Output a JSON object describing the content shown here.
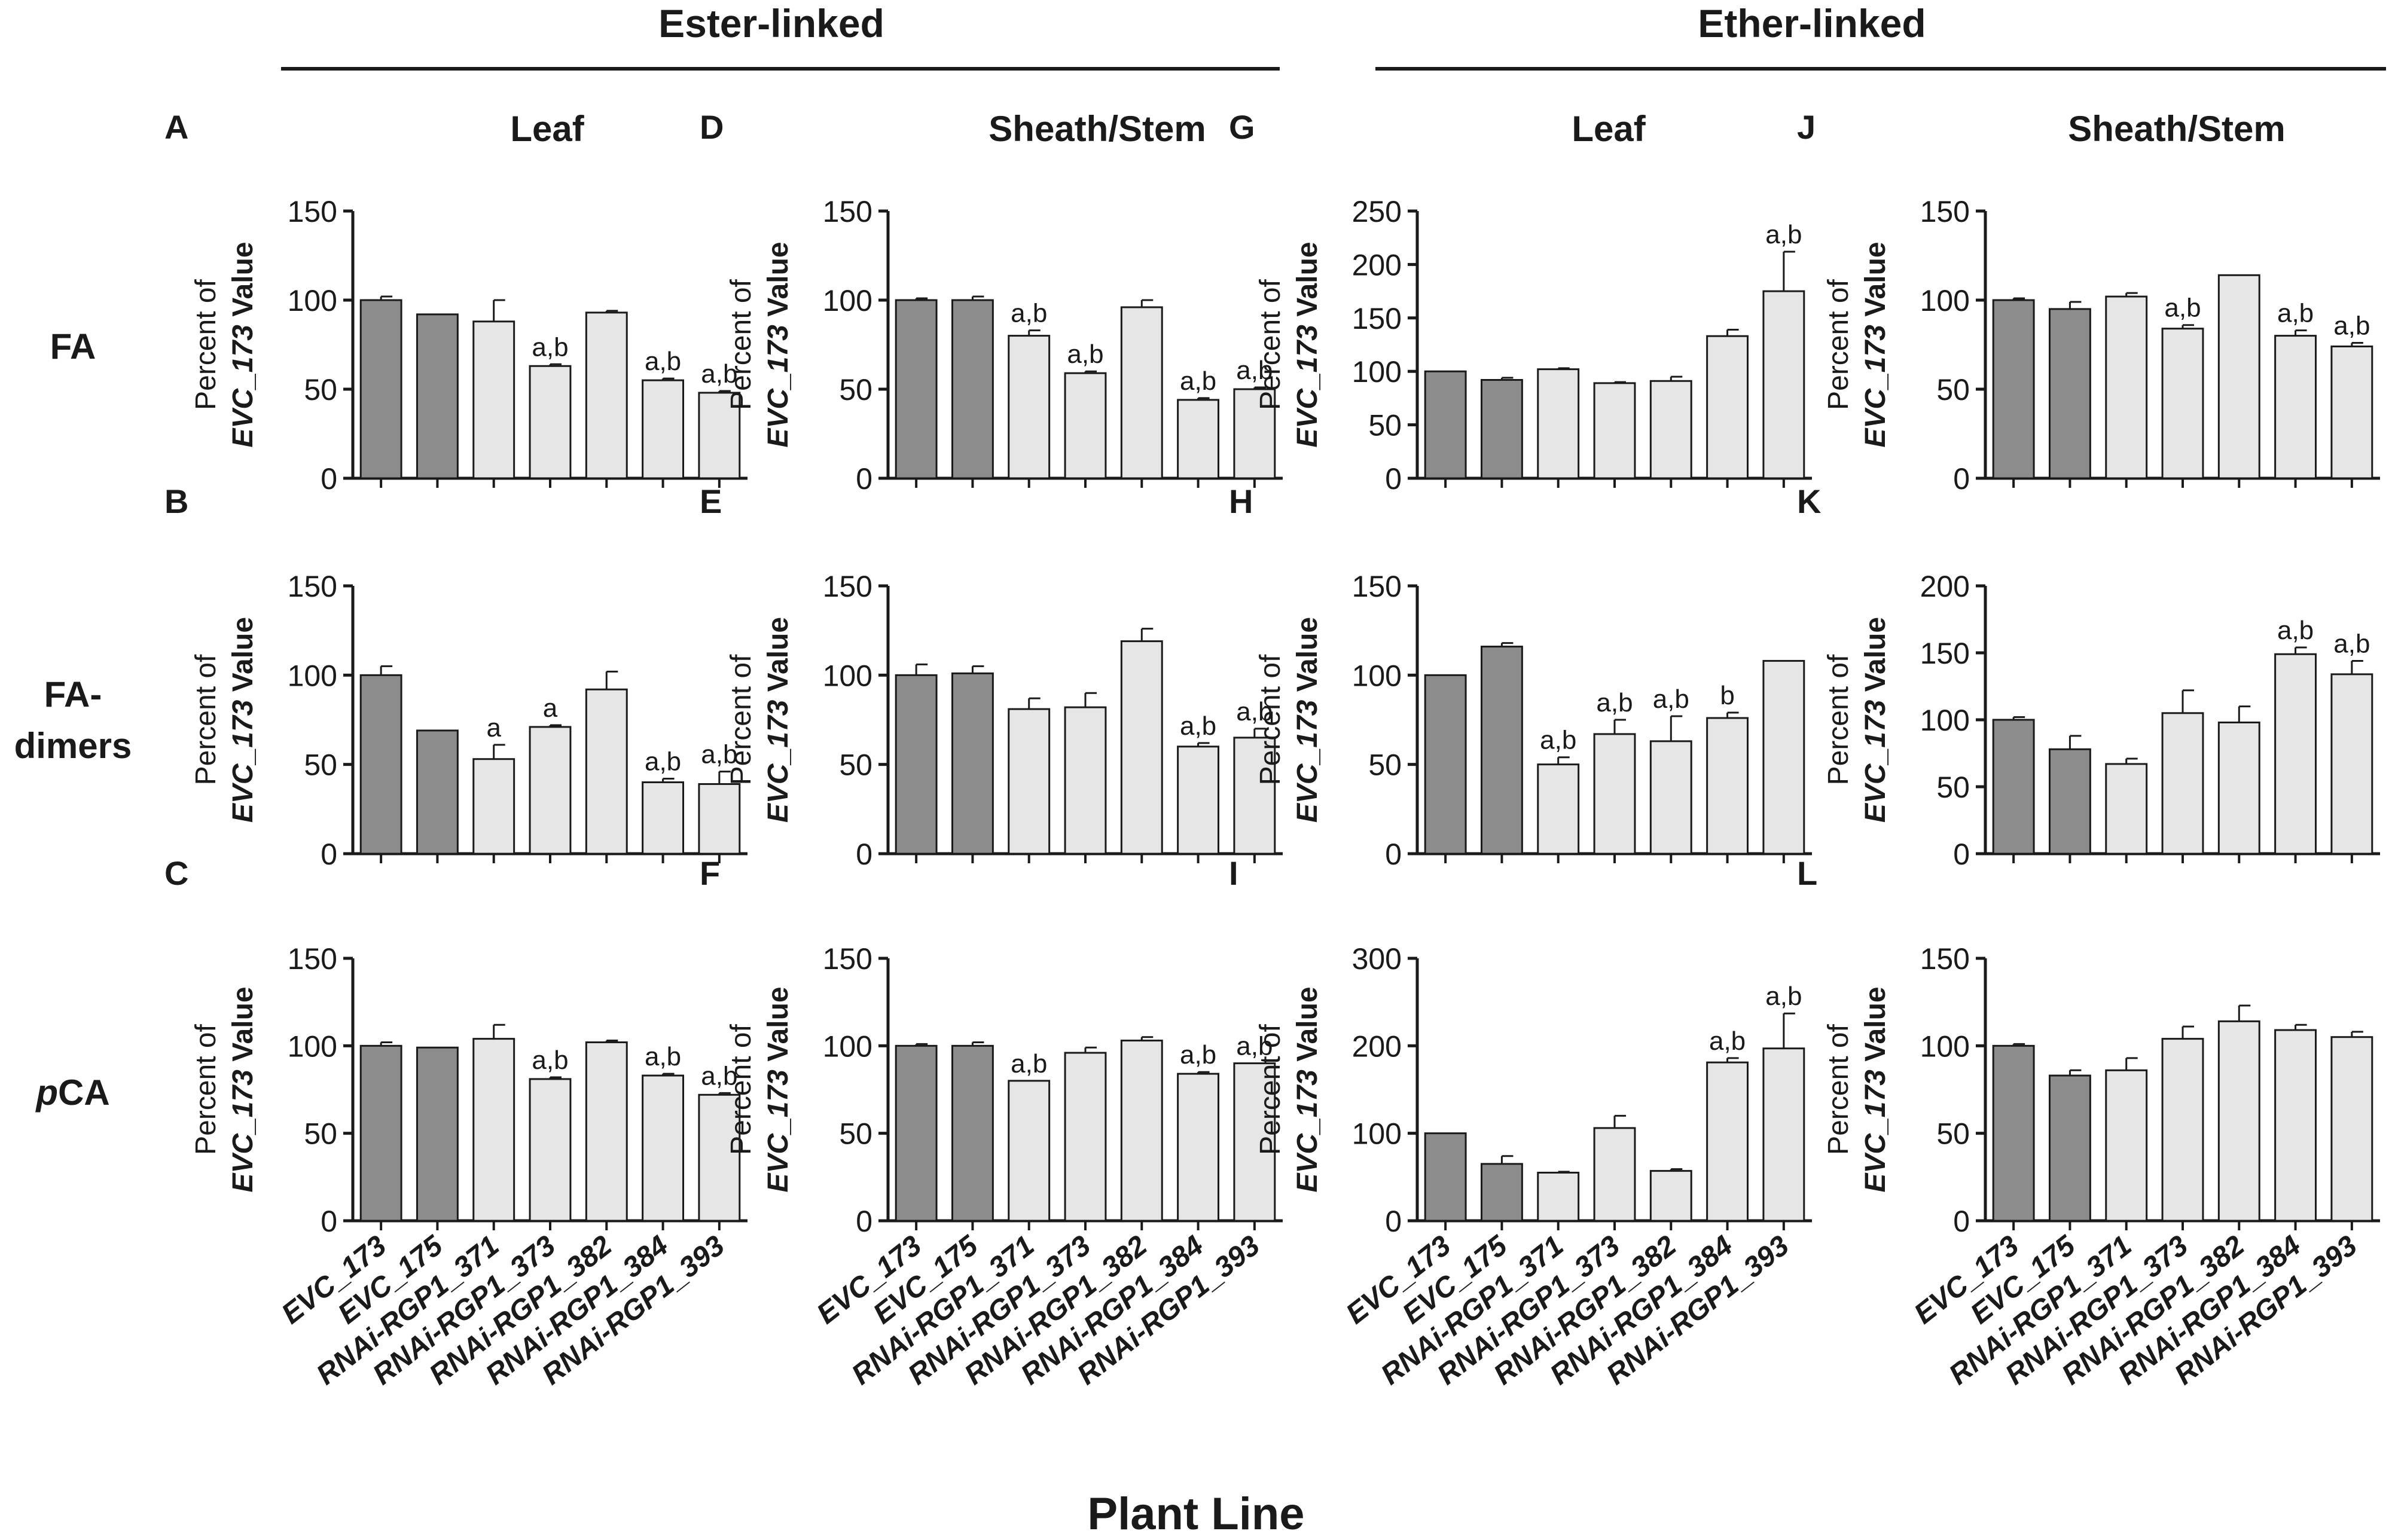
{
  "figure": {
    "group_headers": [
      "Ester-linked",
      "Ether-linked"
    ],
    "column_titles": [
      "Leaf",
      "Sheath/Stem",
      "Leaf",
      "Sheath/Stem"
    ],
    "row_labels": [
      {
        "lines": [
          "FA"
        ],
        "italic_prefix": ""
      },
      {
        "lines": [
          "FA-",
          "dimers"
        ],
        "italic_prefix": ""
      },
      {
        "lines": [
          "CA"
        ],
        "italic_prefix": "p"
      }
    ],
    "ylabel_line1": "Percent of",
    "ylabel_line2_italic": "EVC_173",
    "ylabel_line2_rest": " Value",
    "xlabel": "Plant Line",
    "categories": [
      "EVC_173",
      "EVC_175",
      "RNAi-RGP1_371",
      "RNAi-RGP1_373",
      "RNAi-RGP1_382",
      "RNAi-RGP1_384",
      "RNAi-RGP1_393"
    ],
    "colors": {
      "control": "#8c8c8c",
      "rnai": "#e6e6e6",
      "stroke": "#1a1a1a"
    }
  },
  "chart_data": [
    {
      "panel": "A",
      "type": "bar",
      "row": "FA",
      "group": "Ester-linked",
      "tissue": "Leaf",
      "ylim": [
        0,
        150
      ],
      "ticks": [
        0,
        50,
        100,
        150
      ],
      "values": [
        100,
        92,
        88,
        63,
        93,
        55,
        48
      ],
      "errors": [
        2,
        0,
        12,
        1,
        1,
        1,
        1
      ],
      "labels": [
        "",
        "",
        "",
        "a,b",
        "",
        "a,b",
        "a,b"
      ]
    },
    {
      "panel": "B",
      "type": "bar",
      "row": "FA-dimers",
      "group": "Ester-linked",
      "tissue": "Leaf",
      "ylim": [
        0,
        150
      ],
      "ticks": [
        0,
        50,
        100,
        150
      ],
      "values": [
        100,
        69,
        53,
        71,
        92,
        40,
        39
      ],
      "errors": [
        5,
        0,
        8,
        1,
        10,
        2,
        7
      ],
      "labels": [
        "",
        "",
        "a",
        "a",
        "",
        "a,b",
        "a,b"
      ]
    },
    {
      "panel": "C",
      "type": "bar",
      "row": "pCA",
      "group": "Ester-linked",
      "tissue": "Leaf",
      "ylim": [
        0,
        150
      ],
      "ticks": [
        0,
        50,
        100,
        150
      ],
      "values": [
        100,
        99,
        104,
        81,
        102,
        83,
        72
      ],
      "errors": [
        2,
        0,
        8,
        1,
        1,
        1,
        1
      ],
      "labels": [
        "",
        "",
        "",
        "a,b",
        "",
        "a,b",
        "a,b"
      ]
    },
    {
      "panel": "D",
      "type": "bar",
      "row": "FA",
      "group": "Ester-linked",
      "tissue": "Sheath/Stem",
      "ylim": [
        0,
        150
      ],
      "ticks": [
        0,
        50,
        100,
        150
      ],
      "values": [
        100,
        100,
        80,
        59,
        96,
        44,
        50
      ],
      "errors": [
        1,
        2,
        3,
        1,
        4,
        1,
        1
      ],
      "labels": [
        "",
        "",
        "a,b",
        "a,b",
        "",
        "a,b",
        "a,b"
      ]
    },
    {
      "panel": "E",
      "type": "bar",
      "row": "FA-dimers",
      "group": "Ester-linked",
      "tissue": "Sheath/Stem",
      "ylim": [
        0,
        150
      ],
      "ticks": [
        0,
        50,
        100,
        150
      ],
      "values": [
        100,
        101,
        81,
        82,
        119,
        60,
        65
      ],
      "errors": [
        6,
        4,
        6,
        8,
        7,
        2,
        5
      ],
      "labels": [
        "",
        "",
        "",
        "",
        "",
        "a,b",
        "a,b"
      ]
    },
    {
      "panel": "F",
      "type": "bar",
      "row": "pCA",
      "group": "Ester-linked",
      "tissue": "Sheath/Stem",
      "ylim": [
        0,
        150
      ],
      "ticks": [
        0,
        50,
        100,
        150
      ],
      "values": [
        100,
        100,
        80,
        96,
        103,
        84,
        90
      ],
      "errors": [
        1,
        2,
        0,
        3,
        2,
        1,
        0
      ],
      "labels": [
        "",
        "",
        "a,b",
        "",
        "",
        "a,b",
        "a,b"
      ]
    },
    {
      "panel": "G",
      "type": "bar",
      "row": "FA",
      "group": "Ether-linked",
      "tissue": "Leaf",
      "ylim": [
        0,
        250
      ],
      "ticks": [
        0,
        50,
        100,
        150,
        200,
        250
      ],
      "values": [
        100,
        92,
        102,
        89,
        91,
        133,
        175
      ],
      "errors": [
        0,
        2,
        1,
        1,
        4,
        6,
        37
      ],
      "labels": [
        "",
        "",
        "",
        "",
        "",
        "",
        "a,b"
      ]
    },
    {
      "panel": "H",
      "type": "bar",
      "row": "FA-dimers",
      "group": "Ether-linked",
      "tissue": "Leaf",
      "ylim": [
        0,
        150
      ],
      "ticks": [
        0,
        50,
        100,
        150
      ],
      "values": [
        100,
        116,
        50,
        67,
        63,
        76,
        108
      ],
      "errors": [
        0,
        2,
        4,
        8,
        14,
        3,
        0
      ],
      "labels": [
        "",
        "",
        "a,b",
        "a,b",
        "a,b",
        "b",
        ""
      ]
    },
    {
      "panel": "I",
      "type": "bar",
      "row": "pCA",
      "group": "Ether-linked",
      "tissue": "Leaf",
      "ylim": [
        0,
        300
      ],
      "ticks": [
        0,
        100,
        200,
        300
      ],
      "values": [
        100,
        65,
        55,
        106,
        57,
        181,
        197
      ],
      "errors": [
        0,
        9,
        1,
        14,
        2,
        5,
        40
      ],
      "labels": [
        "",
        "",
        "",
        "",
        "",
        "a,b",
        "a,b"
      ]
    },
    {
      "panel": "J",
      "type": "bar",
      "row": "FA",
      "group": "Ether-linked",
      "tissue": "Sheath/Stem",
      "ylim": [
        0,
        150
      ],
      "ticks": [
        0,
        50,
        100,
        150
      ],
      "values": [
        100,
        95,
        102,
        84,
        114,
        80,
        74
      ],
      "errors": [
        1,
        4,
        2,
        2,
        0,
        3,
        2
      ],
      "labels": [
        "",
        "",
        "",
        "a,b",
        "",
        "a,b",
        "a,b"
      ]
    },
    {
      "panel": "K",
      "type": "bar",
      "row": "FA-dimers",
      "group": "Ether-linked",
      "tissue": "Sheath/Stem",
      "ylim": [
        0,
        200
      ],
      "ticks": [
        0,
        50,
        100,
        150,
        200
      ],
      "values": [
        100,
        78,
        67,
        105,
        98,
        149,
        134
      ],
      "errors": [
        2,
        10,
        4,
        17,
        12,
        5,
        10
      ],
      "labels": [
        "",
        "",
        "",
        "",
        "",
        "a,b",
        "a,b"
      ]
    },
    {
      "panel": "L",
      "type": "bar",
      "row": "pCA",
      "group": "Ether-linked",
      "tissue": "Sheath/Stem",
      "ylim": [
        0,
        150
      ],
      "ticks": [
        0,
        50,
        100,
        150
      ],
      "values": [
        100,
        83,
        86,
        104,
        114,
        109,
        105
      ],
      "errors": [
        1,
        3,
        7,
        7,
        9,
        3,
        3
      ],
      "labels": [
        "",
        "",
        "",
        "",
        "",
        "",
        ""
      ]
    }
  ]
}
